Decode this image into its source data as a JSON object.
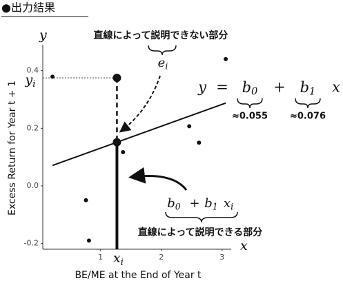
{
  "chart_data": {
    "type": "scatter",
    "title": "●出力結果",
    "x_label": "BE/ME at the End of Year t",
    "y_label": "Excess Return for Year t + 1",
    "x_axis_symbol": "x",
    "y_axis_symbol": "y",
    "x": [
      0.21,
      0.76,
      0.81,
      1.37,
      2.46,
      2.62,
      3.06
    ],
    "values": [
      0.379,
      -0.05,
      -0.19,
      0.117,
      0.207,
      0.15,
      0.44
    ],
    "color": "#111111",
    "xlim": [
      0.05,
      3.15
    ],
    "ylim": [
      -0.22,
      0.49
    ],
    "xticks": [
      1,
      2,
      3
    ],
    "yticks": [
      -0.2,
      {
        "value": 0,
        "label": "0.0"
      },
      0.2,
      0.4
    ],
    "highlight": {
      "x": 1.27,
      "y": 0.375,
      "x_label": {
        "base": "x",
        "sub": "i"
      },
      "y_label": {
        "base": "y",
        "sub": "i"
      }
    },
    "coefficients": {
      "intercept": {
        "value": 0.055,
        "label": "≈0.055"
      },
      "slope": {
        "value": 0.076,
        "label": "≈0.076"
      }
    },
    "equation": {
      "lhs": "y",
      "eq": "=",
      "b0": {
        "base": "b",
        "sub": "0"
      },
      "plus": "+",
      "b1": {
        "base": "b",
        "sub": "1"
      },
      "var": "x"
    },
    "residual_note": "直線によって説明できない部分",
    "residual_symbol": {
      "base": "e",
      "sub": "i"
    },
    "fitted_note": "直線によって説明できる部分",
    "fitted_expr": {
      "b0": {
        "base": "b",
        "sub": "0"
      },
      "plus": "+",
      "b1": {
        "base": "b",
        "sub": "1"
      },
      "x": {
        "base": "x",
        "sub": "i"
      }
    }
  }
}
